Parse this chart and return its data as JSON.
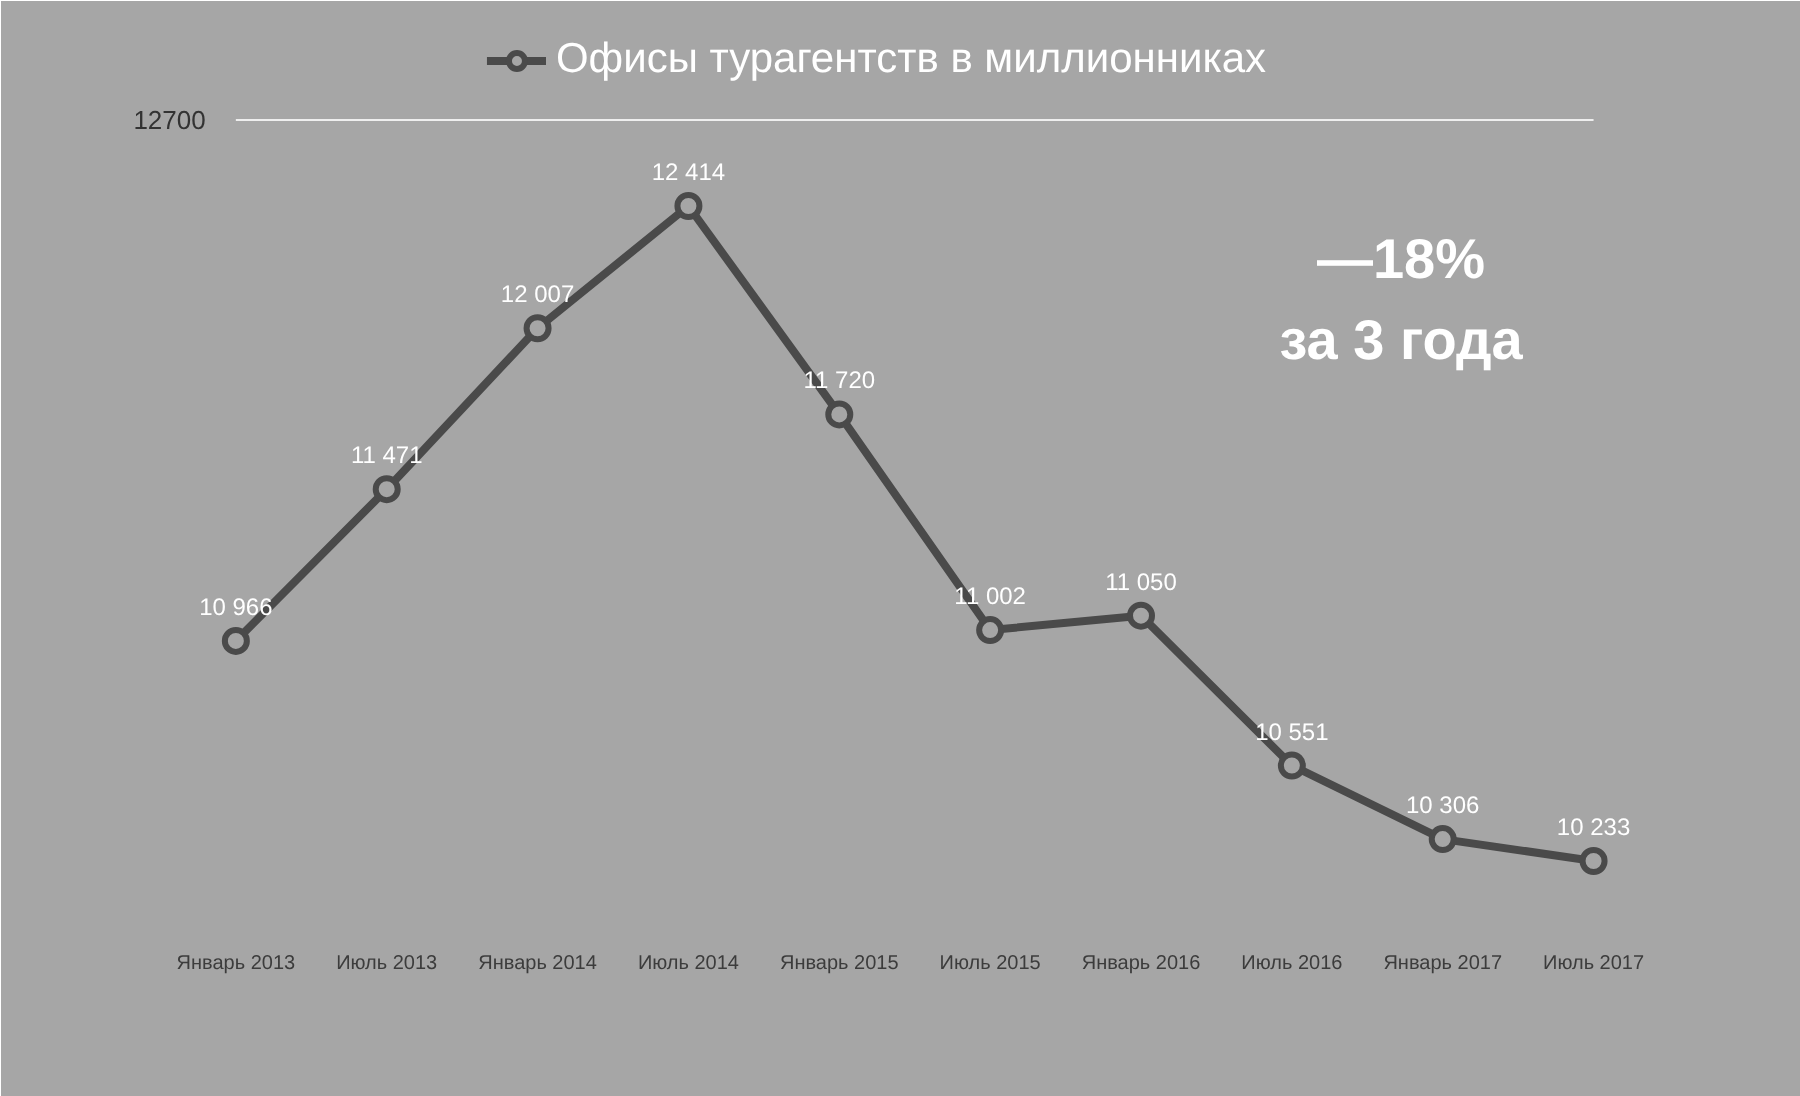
{
  "chart_data": {
    "type": "line",
    "categories": [
      "Январь 2013",
      "Июль 2013",
      "Январь 2014",
      "Июль 2014",
      "Январь 2015",
      "Июль 2015",
      "Январь 2016",
      "Июль 2016",
      "Январь 2017",
      "Июль 2017"
    ],
    "series": [
      {
        "name": "Офисы турагентств в миллионниках",
        "color": "#4a4a4a",
        "values": [
          10966,
          11471,
          12007,
          12414,
          11720,
          11002,
          11050,
          10551,
          10306,
          10233
        ]
      }
    ],
    "ylim": [
      10000,
      13030
    ],
    "ref_lines": [
      {
        "axis": "y",
        "value": 12700,
        "label": "12700",
        "color": "#eeeeee"
      }
    ],
    "legend": "top",
    "marker": "circle",
    "line_style": "solid",
    "data_labels": true,
    "annotations": [
      "—18%\nза 3 года"
    ]
  }
}
